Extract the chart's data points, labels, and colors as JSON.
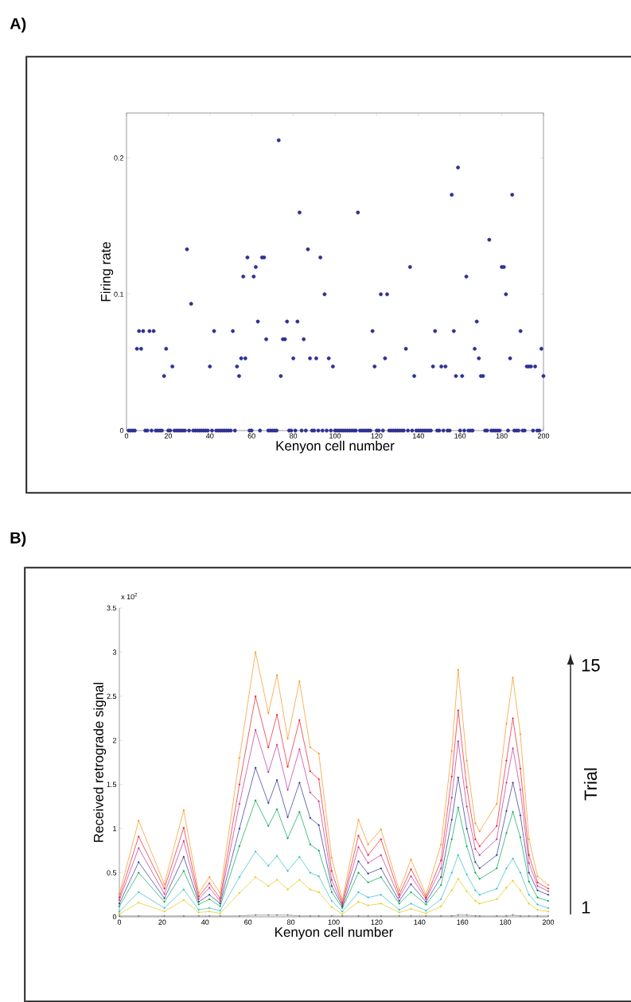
{
  "chart_data": [
    {
      "type": "scatter",
      "title": "A)",
      "xlabel": "Kenyon cell number",
      "ylabel": "Firing rate",
      "color": "#2e3192",
      "marker": "circle",
      "x": [
        1,
        2,
        3,
        4,
        5,
        6,
        7,
        8,
        9,
        10,
        11,
        12,
        13,
        14,
        15,
        16,
        17,
        18,
        19,
        20,
        21,
        22,
        23,
        24,
        25,
        26,
        27,
        28,
        29,
        30,
        31,
        32,
        33,
        34,
        35,
        36,
        37,
        38,
        39,
        40,
        41,
        42,
        43,
        44,
        45,
        46,
        47,
        48,
        49,
        50,
        51,
        52,
        53,
        54,
        55,
        56,
        57,
        58,
        59,
        60,
        61,
        62,
        63,
        64,
        65,
        66,
        67,
        68,
        69,
        70,
        71,
        72,
        73,
        74,
        75,
        76,
        77,
        78,
        79,
        80,
        81,
        82,
        83,
        84,
        85,
        86,
        87,
        88,
        89,
        90,
        91,
        92,
        93,
        94,
        95,
        96,
        97,
        98,
        99,
        100,
        101,
        102,
        103,
        104,
        105,
        106,
        107,
        108,
        109,
        110,
        111,
        112,
        113,
        114,
        115,
        116,
        117,
        118,
        119,
        120,
        121,
        122,
        123,
        124,
        125,
        126,
        127,
        128,
        129,
        130,
        131,
        132,
        133,
        134,
        135,
        136,
        137,
        138,
        139,
        140,
        141,
        142,
        143,
        144,
        145,
        146,
        147,
        148,
        149,
        150,
        151,
        152,
        153,
        154,
        155,
        156,
        157,
        158,
        159,
        160,
        161,
        162,
        163,
        164,
        165,
        166,
        167,
        168,
        169,
        170,
        171,
        172,
        173,
        174,
        175,
        176,
        177,
        178,
        179,
        180,
        181,
        182,
        183,
        184,
        185,
        186,
        187,
        188,
        189,
        190,
        191,
        192,
        193,
        194,
        195,
        196,
        197,
        198,
        199,
        200
      ],
      "values": [
        0,
        0,
        0,
        0,
        0.06,
        0.073,
        0.06,
        0.073,
        0,
        0,
        0.073,
        0,
        0.073,
        0,
        0,
        0,
        0,
        0.04,
        0.06,
        0,
        0,
        0.047,
        0,
        0,
        0,
        0,
        0,
        0,
        0.133,
        0,
        0.093,
        0,
        0,
        0,
        0,
        0,
        0,
        0,
        0,
        0.047,
        0,
        0.073,
        0,
        0,
        0,
        0,
        0,
        0,
        0,
        0,
        0.073,
        0,
        0.047,
        0.04,
        0.053,
        0.113,
        0.053,
        0.127,
        0,
        0,
        0.113,
        0.12,
        0.08,
        0,
        0.127,
        0.127,
        0.067,
        0,
        0,
        0,
        0,
        0,
        0.213,
        0.04,
        0.067,
        0.067,
        0.08,
        0,
        0,
        0.053,
        0,
        0.08,
        0.16,
        0,
        0.067,
        0,
        0.133,
        0.053,
        0,
        0,
        0.053,
        0,
        0.127,
        0,
        0.1,
        0,
        0.053,
        0,
        0.047,
        0,
        0,
        0,
        0,
        0,
        0,
        0,
        0,
        0,
        0,
        0,
        0.16,
        0,
        0,
        0,
        0,
        0,
        0,
        0.073,
        0.047,
        0,
        0,
        0.1,
        0,
        0.053,
        0.1,
        0,
        0,
        0,
        0,
        0,
        0,
        0,
        0,
        0.06,
        0,
        0.12,
        0,
        0.04,
        0,
        0,
        0,
        0,
        0,
        0,
        0,
        0,
        0.047,
        0.073,
        0,
        0,
        0.047,
        0,
        0.047,
        0,
        0,
        0.173,
        0.073,
        0.04,
        0.193,
        0,
        0.04,
        0,
        0.113,
        0,
        0,
        0,
        0.06,
        0.08,
        0.053,
        0.04,
        0.04,
        0,
        0,
        0.14,
        0,
        0,
        0,
        0,
        0,
        0.12,
        0.12,
        0.1,
        0,
        0.053,
        0.173,
        0,
        0,
        0,
        0.073,
        0,
        0,
        0.047,
        0.047,
        0.047,
        0,
        0.047,
        0,
        0,
        0.06,
        0.04
      ],
      "xlim": [
        0,
        200
      ],
      "ylim": [
        0,
        0.233
      ],
      "xticks": [
        0,
        20,
        40,
        60,
        80,
        100,
        120,
        140,
        160,
        180,
        200
      ],
      "yticks": [
        0,
        0.1,
        0.2
      ]
    },
    {
      "type": "line",
      "title": "B)",
      "xlabel": "Kenyon cell number",
      "ylabel": "Received retrograde signal",
      "marker": "circle",
      "line_style": "solid",
      "annotations": [
        "x 10$^{2}$",
        "15",
        "Trial",
        "1"
      ],
      "x": [
        0,
        9,
        21,
        30,
        37,
        42,
        47,
        56,
        63.5,
        69.5,
        73.5,
        78.5,
        84,
        89,
        93,
        99,
        104,
        111.5,
        116,
        122,
        130.5,
        136,
        143,
        150,
        155,
        158,
        162,
        166,
        168,
        176,
        180.5,
        183.5,
        187,
        191,
        195,
        200
      ],
      "series": [
        {
          "color": "#808080",
          "values": [
            0.01,
            0.01,
            0.01,
            0.01,
            0.01,
            0.01,
            0.01,
            0.01,
            0.02,
            0.02,
            0.02,
            0.02,
            0.01,
            0.01,
            0.01,
            0.01,
            0.01,
            0.01,
            0.01,
            0.01,
            0.01,
            0.01,
            0.01,
            0.01,
            0.01,
            0.02,
            0.02,
            0.01,
            0.01,
            0.01,
            0.01,
            0.02,
            0.01,
            0.01,
            0.01,
            0.01
          ]
        },
        {
          "color": "#e3c918",
          "values": [
            0.03,
            0.16,
            0.06,
            0.19,
            0.05,
            0.06,
            0.04,
            0.27,
            0.45,
            0.35,
            0.42,
            0.31,
            0.42,
            0.31,
            0.28,
            0.11,
            0.03,
            0.17,
            0.13,
            0.15,
            0.05,
            0.09,
            0.04,
            0.12,
            0.3,
            0.43,
            0.29,
            0.18,
            0.15,
            0.2,
            0.33,
            0.41,
            0.3,
            0.15,
            0.08,
            0.06
          ]
        },
        {
          "color": "#2ebfc6",
          "values": [
            0.06,
            0.28,
            0.1,
            0.31,
            0.08,
            0.1,
            0.07,
            0.45,
            0.74,
            0.58,
            0.69,
            0.52,
            0.68,
            0.5,
            0.46,
            0.18,
            0.06,
            0.28,
            0.22,
            0.25,
            0.08,
            0.15,
            0.07,
            0.2,
            0.5,
            0.7,
            0.48,
            0.3,
            0.25,
            0.32,
            0.55,
            0.66,
            0.5,
            0.25,
            0.14,
            0.1
          ]
        },
        {
          "color": "#00a651",
          "values": [
            0.12,
            0.5,
            0.17,
            0.52,
            0.14,
            0.2,
            0.12,
            0.8,
            1.32,
            1.03,
            1.22,
            0.89,
            1.19,
            0.82,
            0.75,
            0.28,
            0.1,
            0.5,
            0.39,
            0.45,
            0.15,
            0.28,
            0.14,
            0.36,
            0.88,
            1.24,
            0.8,
            0.5,
            0.43,
            0.55,
            0.95,
            1.19,
            0.9,
            0.4,
            0.22,
            0.18
          ]
        },
        {
          "color": "#2e3192",
          "values": [
            0.15,
            0.62,
            0.21,
            0.68,
            0.17,
            0.25,
            0.15,
            1.0,
            1.69,
            1.29,
            1.55,
            1.13,
            1.52,
            1.12,
            1.04,
            0.35,
            0.12,
            0.63,
            0.49,
            0.55,
            0.18,
            0.37,
            0.17,
            0.45,
            1.1,
            1.58,
            1.0,
            0.62,
            0.55,
            0.7,
            1.2,
            1.52,
            1.15,
            0.5,
            0.3,
            0.25
          ]
        },
        {
          "color": "#c1328e",
          "values": [
            0.19,
            0.78,
            0.26,
            0.86,
            0.2,
            0.33,
            0.18,
            1.28,
            2.12,
            1.64,
            1.95,
            1.44,
            1.9,
            1.41,
            1.31,
            0.42,
            0.14,
            0.79,
            0.61,
            0.7,
            0.22,
            0.46,
            0.2,
            0.55,
            1.35,
            1.99,
            1.25,
            0.77,
            0.7,
            0.88,
            1.52,
            1.91,
            1.44,
            0.61,
            0.35,
            0.29
          ]
        },
        {
          "color": "#ed1c24",
          "values": [
            0.22,
            0.91,
            0.32,
            1.01,
            0.23,
            0.38,
            0.21,
            1.5,
            2.5,
            1.92,
            2.29,
            1.7,
            2.23,
            1.65,
            1.56,
            0.52,
            0.16,
            0.92,
            0.7,
            0.88,
            0.25,
            0.54,
            0.22,
            0.64,
            1.59,
            2.34,
            1.47,
            0.88,
            0.8,
            1.03,
            1.77,
            2.25,
            1.68,
            0.7,
            0.39,
            0.32
          ]
        },
        {
          "color": "#f7941d",
          "values": [
            0.26,
            1.09,
            0.37,
            1.21,
            0.27,
            0.45,
            0.27,
            1.8,
            3.0,
            2.31,
            2.74,
            2.02,
            2.67,
            1.92,
            1.85,
            0.67,
            0.19,
            1.1,
            0.82,
            0.99,
            0.3,
            0.65,
            0.25,
            0.82,
            1.88,
            2.8,
            1.77,
            1.06,
            0.97,
            1.28,
            2.19,
            2.71,
            2.07,
            0.88,
            0.46,
            0.36
          ]
        }
      ],
      "xlim": [
        0,
        200
      ],
      "ylim": [
        0,
        3.5
      ],
      "xticks": [
        0,
        20,
        40,
        60,
        80,
        100,
        120,
        140,
        160,
        180,
        200
      ],
      "yticks": [
        0,
        0.5,
        1,
        1.5,
        2,
        2.5,
        3,
        3.5
      ]
    }
  ]
}
